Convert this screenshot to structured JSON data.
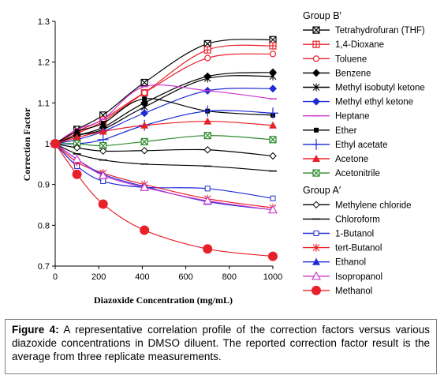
{
  "chart_data": {
    "type": "line",
    "xlabel": "Diazoxide Concentration (mg/mL)",
    "ylabel": "Correction Factor",
    "xlim": [
      0,
      1000
    ],
    "ylim": [
      0.7,
      1.3
    ],
    "xticks": [
      0,
      200,
      400,
      600,
      800,
      1000
    ],
    "yticks": [
      0.7,
      0.8,
      0.9,
      1,
      1.1,
      1.2,
      1.3
    ],
    "x": [
      0,
      100,
      220,
      410,
      700,
      1000
    ],
    "legend_groups": [
      "Group B′",
      "Group A′"
    ],
    "series": [
      {
        "name": "Tetrahydrofuran (THF)",
        "group": 0,
        "color": "#000000",
        "marker": "boxx",
        "values": [
          1.0,
          1.035,
          1.07,
          1.15,
          1.245,
          1.255
        ]
      },
      {
        "name": "1,4-Dioxane",
        "group": 0,
        "color": "#e8202a",
        "marker": "boxplus",
        "values": [
          1.0,
          1.025,
          1.055,
          1.125,
          1.23,
          1.24
        ]
      },
      {
        "name": "Toluene",
        "group": 0,
        "color": "#e8202a",
        "marker": "circle-open",
        "values": [
          1.0,
          1.03,
          1.06,
          1.125,
          1.21,
          1.22
        ]
      },
      {
        "name": "Benzene",
        "group": 0,
        "color": "#000000",
        "marker": "diamond-filled",
        "values": [
          1.0,
          1.02,
          1.04,
          1.1,
          1.165,
          1.175
        ]
      },
      {
        "name": "Methyl isobutyl ketone",
        "group": 0,
        "color": "#000000",
        "marker": "star",
        "values": [
          1.0,
          1.02,
          1.035,
          1.09,
          1.16,
          1.165
        ]
      },
      {
        "name": "Methyl ethyl ketone",
        "group": 0,
        "color": "#1f2bd6",
        "marker": "diamond-filled",
        "values": [
          1.0,
          1.01,
          1.03,
          1.075,
          1.13,
          1.135
        ]
      },
      {
        "name": "Heptane",
        "group": 0,
        "color": "#cc33cc",
        "marker": "dash",
        "values": [
          1.0,
          1.035,
          1.06,
          1.14,
          1.13,
          1.11
        ]
      },
      {
        "name": "Ether",
        "group": 0,
        "color": "#000000",
        "marker": "square-filled",
        "values": [
          1.0,
          1.03,
          1.05,
          1.11,
          1.08,
          1.07
        ]
      },
      {
        "name": "Ethyl acetate",
        "group": 0,
        "color": "#1f2bd6",
        "marker": "plus",
        "values": [
          1.0,
          1.0,
          1.01,
          1.045,
          1.08,
          1.075
        ]
      },
      {
        "name": "Acetone",
        "group": 0,
        "color": "#e8202a",
        "marker": "triangle-filled",
        "values": [
          1.0,
          1.015,
          1.03,
          1.045,
          1.055,
          1.045
        ]
      },
      {
        "name": "Acetonitrile",
        "group": 0,
        "color": "#2e8b2e",
        "marker": "boxx",
        "values": [
          1.0,
          1.0,
          0.995,
          1.005,
          1.02,
          1.01
        ]
      },
      {
        "name": "Methylene chloride",
        "group": 1,
        "color": "#000000",
        "marker": "diamond-open",
        "values": [
          1.0,
          0.99,
          0.982,
          0.983,
          0.985,
          0.97
        ]
      },
      {
        "name": "Chloroform",
        "group": 1,
        "color": "#000000",
        "marker": "dash",
        "values": [
          1.0,
          0.975,
          0.96,
          0.95,
          0.945,
          0.933
        ]
      },
      {
        "name": "1-Butanol",
        "group": 1,
        "color": "#1f2bd6",
        "marker": "square-open",
        "values": [
          1.0,
          0.945,
          0.908,
          0.893,
          0.89,
          0.866
        ]
      },
      {
        "name": "tert-Butanol",
        "group": 1,
        "color": "#e8202a",
        "marker": "star",
        "values": [
          1.0,
          0.955,
          0.928,
          0.9,
          0.865,
          0.843
        ]
      },
      {
        "name": "Ethanol",
        "group": 1,
        "color": "#1f2bd6",
        "marker": "triangle-filled",
        "values": [
          1.0,
          0.962,
          0.925,
          0.895,
          0.858,
          0.838
        ]
      },
      {
        "name": "Isopropanol",
        "group": 1,
        "color": "#cc33cc",
        "marker": "triangle-open",
        "values": [
          1.0,
          0.962,
          0.922,
          0.893,
          0.86,
          0.838
        ]
      },
      {
        "name": "Methanol",
        "group": 1,
        "color": "#e8202a",
        "marker": "circle-filled-large",
        "values": [
          1.0,
          0.925,
          0.852,
          0.788,
          0.742,
          0.724
        ]
      }
    ]
  },
  "caption": {
    "label": "Figure 4:",
    "text": " A representative correlation profile of the correction factors versus various diazoxide concentrations in DMSO diluent. The reported correction factor result is the average from three replicate measurements."
  }
}
